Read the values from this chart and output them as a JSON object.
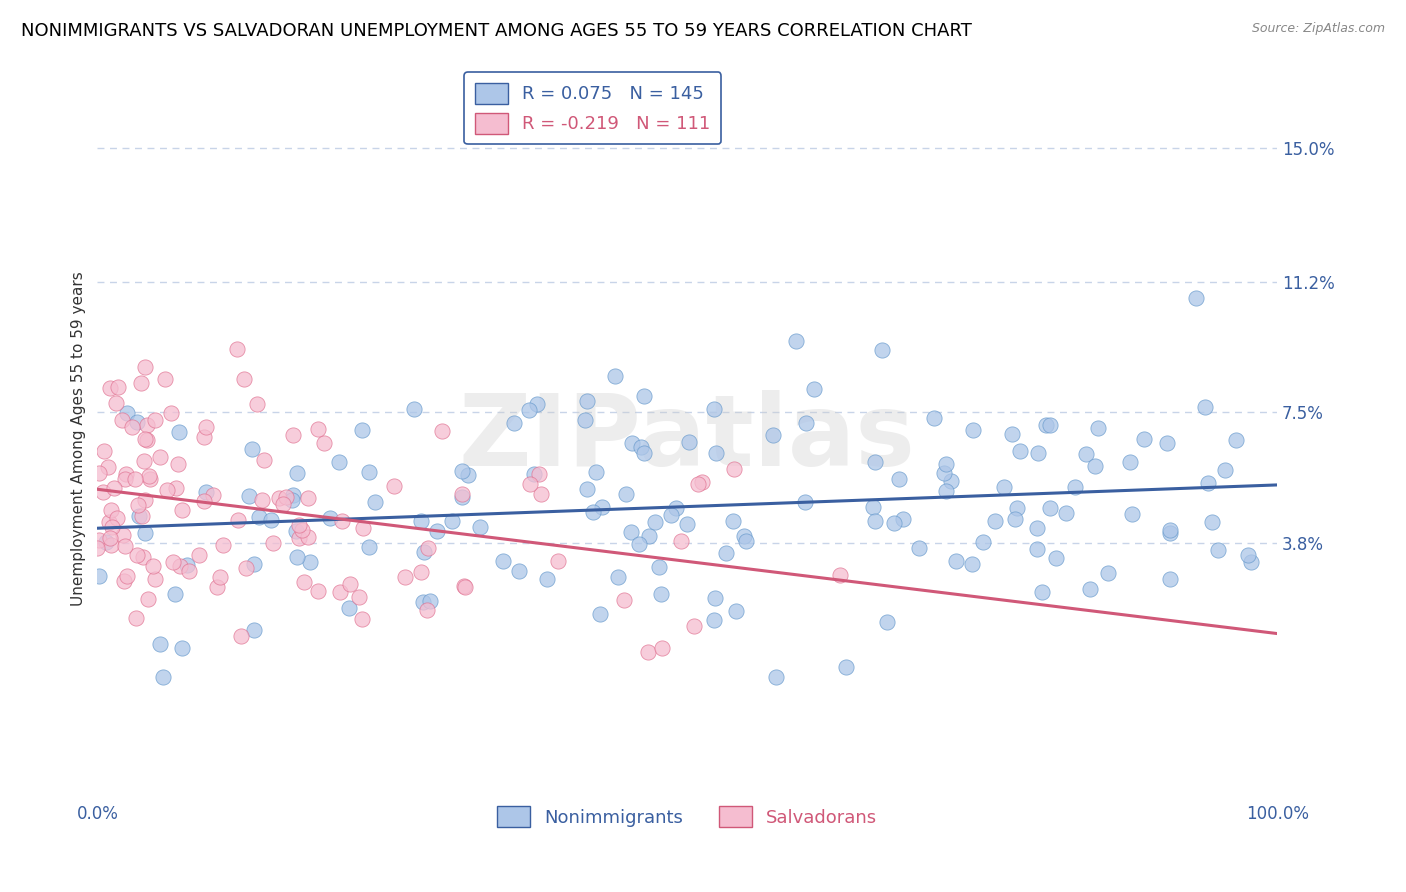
{
  "title": "NONIMMIGRANTS VS SALVADORAN UNEMPLOYMENT AMONG AGES 55 TO 59 YEARS CORRELATION CHART",
  "source": "Source: ZipAtlas.com",
  "ylabel": "Unemployment Among Ages 55 to 59 years",
  "xlim": [
    0,
    100
  ],
  "ylim": [
    -3.5,
    17
  ],
  "ytick_values": [
    3.8,
    7.5,
    11.2,
    15.0
  ],
  "xtick_values": [
    0,
    100
  ],
  "xtick_labels": [
    "0.0%",
    "100.0%"
  ],
  "nonimmigrants_R": 0.075,
  "nonimmigrants_N": 145,
  "salvadorans_R": -0.219,
  "salvadorans_N": 111,
  "nonimmigrant_color": "#adc6e8",
  "salvadoran_color": "#f5bdd0",
  "nonimmigrant_edge_color": "#6699cc",
  "salvadoran_edge_color": "#e07090",
  "nonimmigrant_line_color": "#3a5fa0",
  "salvadoran_line_color": "#d05878",
  "background_color": "#ffffff",
  "grid_color": "#c8d4e8",
  "watermark": "ZIPatlas",
  "title_fontsize": 13,
  "axis_label_fontsize": 11,
  "tick_fontsize": 12,
  "legend_fontsize": 13
}
